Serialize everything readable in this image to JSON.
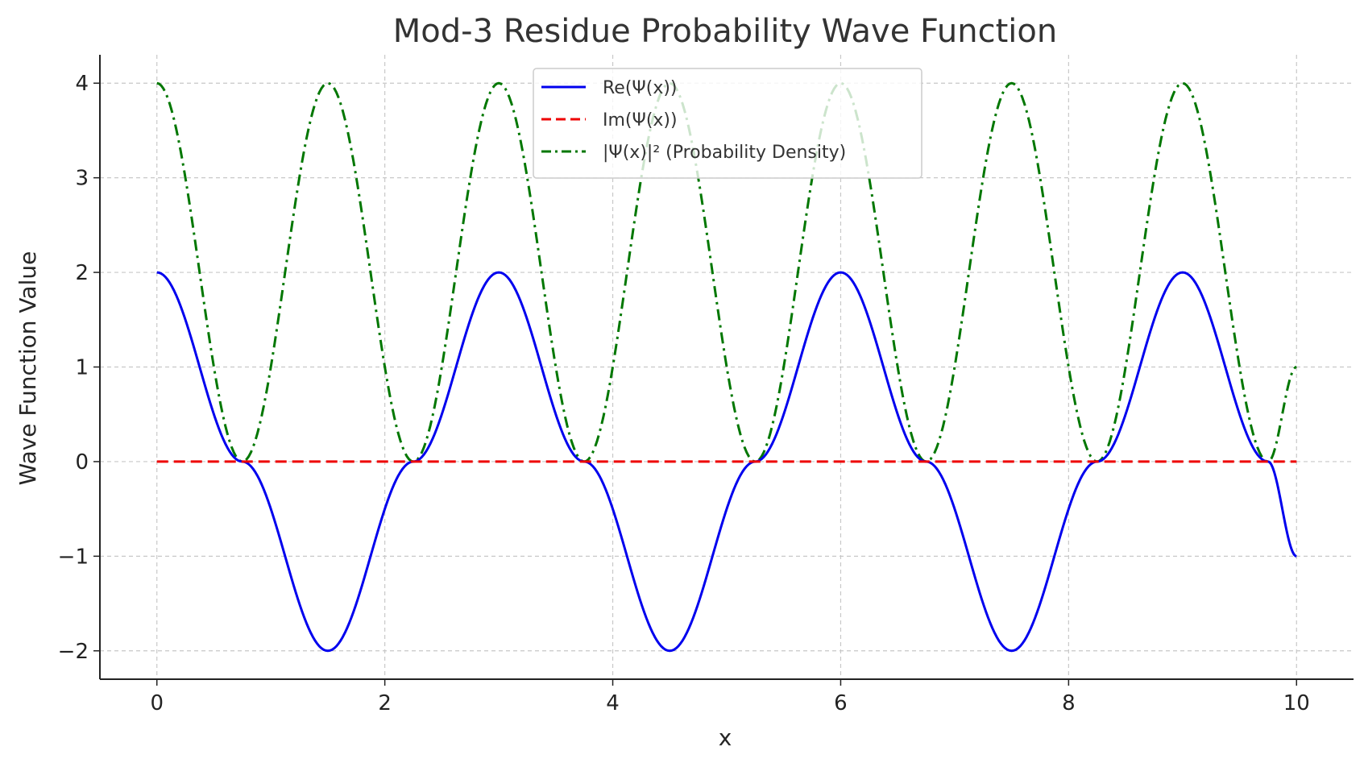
{
  "chart_data": {
    "type": "line",
    "title": "Mod-3 Residue Probability Wave Function",
    "xlabel": "x",
    "ylabel": "Wave Function Value",
    "xlim": [
      -0.5,
      10.5
    ],
    "ylim": [
      -2.3,
      4.3
    ],
    "xticks": [
      0,
      2,
      4,
      6,
      8,
      10
    ],
    "xtick_labels": [
      "0",
      "2",
      "4",
      "6",
      "8",
      "10"
    ],
    "yticks": [
      -2,
      -1,
      0,
      1,
      2,
      3,
      4
    ],
    "ytick_labels": [
      "−2",
      "−1",
      "0",
      "1",
      "2",
      "3",
      "4"
    ],
    "grid": true,
    "legend_position": "top-center",
    "x_range": [
      0,
      10
    ],
    "series": [
      {
        "name": "Re(Ψ(x))",
        "color": "#0000ee",
        "style": "solid",
        "x": [
          0,
          0.75,
          1.5,
          2.25,
          3,
          3.75,
          4.5,
          5.25,
          6,
          6.75,
          7.5,
          8.25,
          9,
          9.75,
          10
        ],
        "y": [
          2,
          0,
          -2,
          0,
          2,
          0,
          -2,
          0,
          2,
          0,
          -2,
          0,
          2,
          0,
          -1
        ]
      },
      {
        "name": "Im(Ψ(x))",
        "color": "#ee0000",
        "style": "dashed",
        "x": [
          0,
          10
        ],
        "y": [
          0,
          0
        ]
      },
      {
        "name": "|Ψ(x)|² (Probability Density)",
        "color": "#007700",
        "style": "dashdot",
        "x": [
          0,
          0.75,
          1.5,
          2.25,
          3,
          3.75,
          4.5,
          5.25,
          6,
          6.75,
          7.5,
          8.25,
          9,
          9.75,
          10
        ],
        "y": [
          4,
          0,
          4,
          0,
          4,
          0,
          4,
          0,
          4,
          0,
          4,
          0,
          4,
          0,
          1
        ]
      }
    ]
  }
}
